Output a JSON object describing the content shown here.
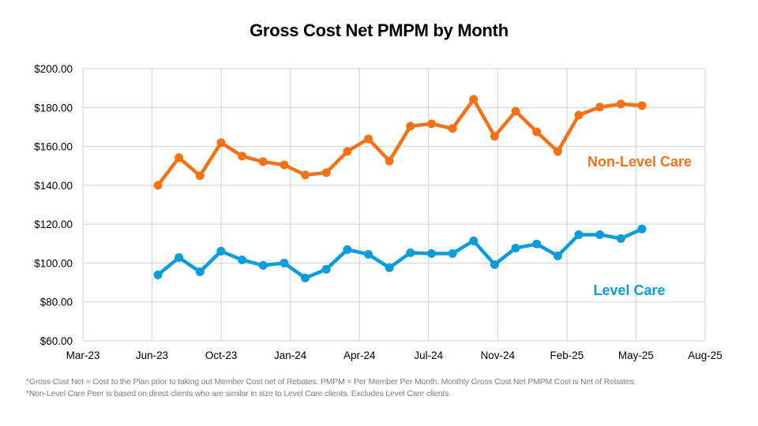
{
  "chart_data": {
    "type": "line",
    "title": "Gross Cost Net PMPM by Month",
    "xlabel": "",
    "ylabel": "",
    "ylim": [
      60,
      200
    ],
    "yticks": [
      "$60.00",
      "$80.00",
      "$100.00",
      "$120.00",
      "$140.00",
      "$160.00",
      "$180.00",
      "$200.00"
    ],
    "xticks": [
      "Mar-23",
      "Jun-23",
      "Oct-23",
      "Jan-24",
      "Apr-24",
      "Jul-24",
      "Nov-24",
      "Feb-25",
      "May-25",
      "Aug-25"
    ],
    "grid": true,
    "x": [
      "Jun-23",
      "Jul-23",
      "Aug-23",
      "Sep-23",
      "Oct-23",
      "Nov-23",
      "Dec-23",
      "Jan-24",
      "Feb-24",
      "Mar-24",
      "Apr-24",
      "May-24",
      "Jun-24",
      "Jul-24",
      "Aug-24",
      "Sep-24",
      "Oct-24",
      "Nov-24",
      "Dec-24",
      "Jan-25",
      "Feb-25",
      "Mar-25",
      "Apr-25",
      "May-25"
    ],
    "series": [
      {
        "name": "Non-Level Care",
        "color": "#F47216",
        "values": [
          140.0,
          154.2,
          144.9,
          161.9,
          155.0,
          152.1,
          150.5,
          145.3,
          146.5,
          157.4,
          163.9,
          152.5,
          170.4,
          171.6,
          169.2,
          184.2,
          165.2,
          178.1,
          167.5,
          157.4,
          176.1,
          180.2,
          181.8,
          181.0
        ]
      },
      {
        "name": "Level Care",
        "color": "#0B9DDB",
        "values": [
          93.9,
          102.8,
          95.5,
          106.1,
          101.6,
          98.8,
          100.0,
          92.3,
          96.8,
          106.9,
          104.5,
          97.6,
          105.3,
          104.9,
          104.9,
          111.4,
          99.2,
          107.7,
          109.8,
          103.7,
          114.6,
          114.6,
          112.6,
          117.5
        ]
      }
    ]
  },
  "footnotes": [
    "*Gross Cost Net = Cost to the Plan prior to taking out Member Cost net of Rebates. PMPM = Per Member Per Month. Monthly Gross Cost Net PMPM Cost is Net of Rebates.",
    "*Non-Level Care Peer is based on direct clients who are similar in size to Level Care clients. Excludes Level Care clients."
  ]
}
